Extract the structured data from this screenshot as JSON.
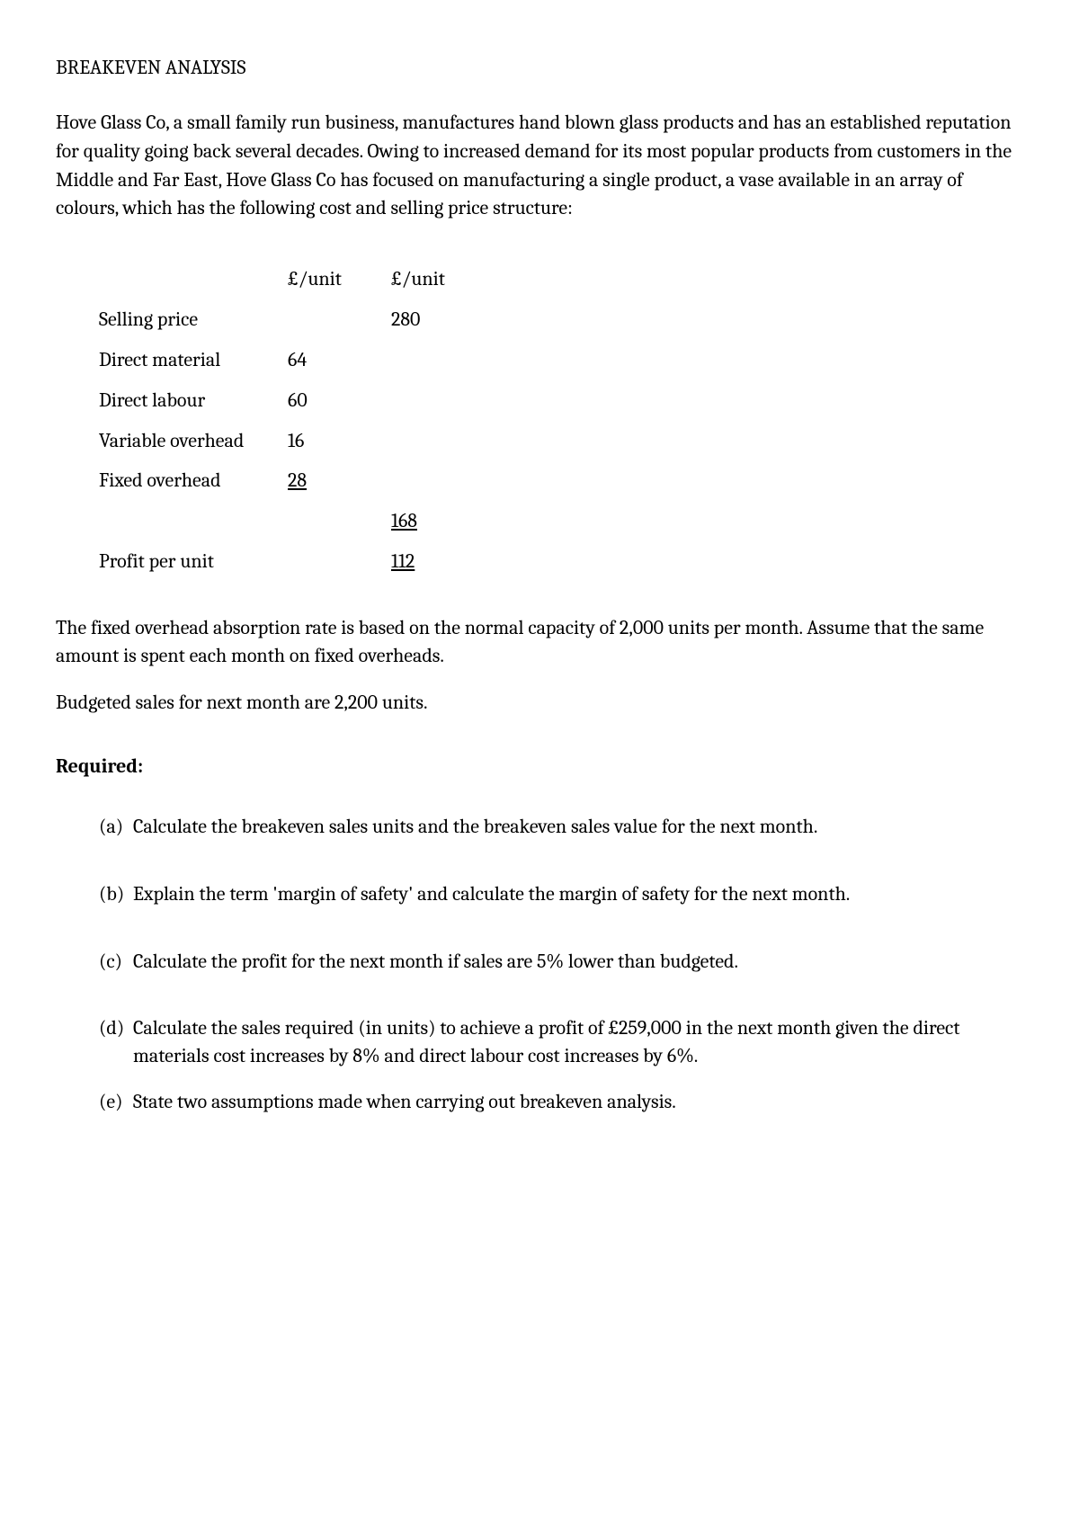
{
  "title": "BREAKEVEN ANALYSIS",
  "intro": "Hove Glass Co, a small family run business, manufactures hand blown glass products and has an established reputation for quality going back several decades.  Owing to increased demand for its most popular products from customers in the Middle and Far East, Hove Glass Co has focused on manufacturing a single product, a vase available in an array of colours, which has the following cost and selling price structure:",
  "table": {
    "header_col_a": "£/unit",
    "header_col_b": "£/unit",
    "rows": [
      {
        "label": "Selling price",
        "a": "",
        "b": "280",
        "a_underline": false,
        "b_underline": false
      },
      {
        "label": "Direct material",
        "a": "64",
        "b": "",
        "a_underline": false,
        "b_underline": false
      },
      {
        "label": "Direct labour",
        "a": "60",
        "b": "",
        "a_underline": false,
        "b_underline": false
      },
      {
        "label": "Variable overhead",
        "a": "16",
        "b": "",
        "a_underline": false,
        "b_underline": false
      },
      {
        "label": "Fixed overhead",
        "a": "28",
        "b": "",
        "a_underline": true,
        "b_underline": false
      },
      {
        "label": "",
        "a": "",
        "b": "168",
        "a_underline": false,
        "b_underline": true
      },
      {
        "label": "Profit per unit",
        "a": "",
        "b": "112",
        "a_underline": false,
        "b_underline": true
      }
    ]
  },
  "para1": "The fixed overhead absorption rate is based on the normal capacity of 2,000 units per month. Assume that the same amount is spent each month on fixed overheads.",
  "para2": "Budgeted sales for next month are 2,200 units.",
  "required_label": "Required:",
  "questions": [
    {
      "marker": "(a)",
      "text": "Calculate the breakeven sales units and the breakeven sales value for the next month."
    },
    {
      "marker": "(b)",
      "text": "Explain the term 'margin of safety' and calculate the margin of safety for the next month."
    },
    {
      "marker": "(c)",
      "text": "Calculate the profit for the next month if sales are 5% lower than budgeted."
    },
    {
      "marker": "(d)",
      "text": "Calculate the sales required (in units) to achieve a profit of £259,000 in the next month given the direct materials cost increases by 8% and direct labour cost increases by 6%."
    },
    {
      "marker": "(e)",
      "text": "State two assumptions made when carrying out breakeven analysis."
    }
  ]
}
